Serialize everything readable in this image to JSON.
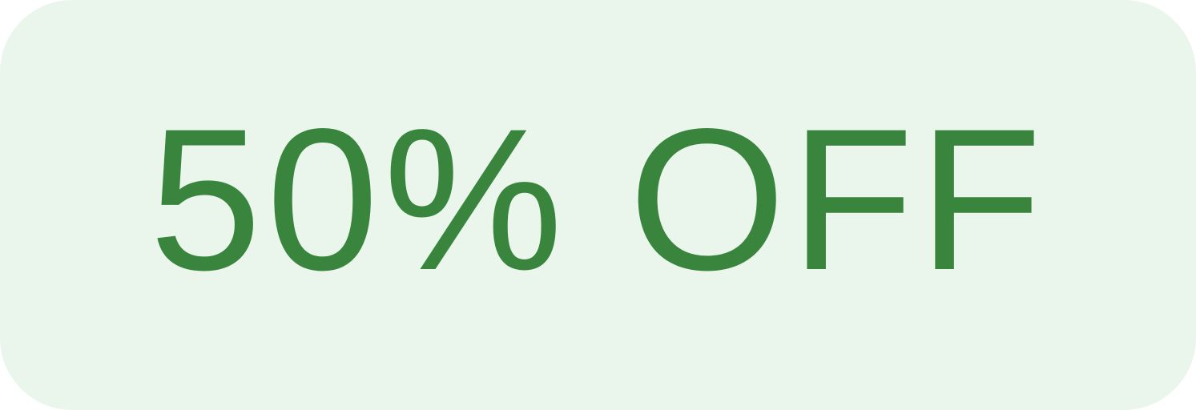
{
  "badge": {
    "label": "50% OFF",
    "text_color": "#3a853e",
    "background_color": "#eaf5ec"
  }
}
